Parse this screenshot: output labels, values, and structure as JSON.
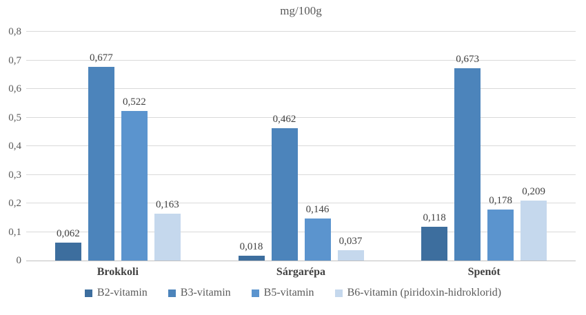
{
  "chart_data": {
    "type": "bar",
    "title": "mg/100g",
    "xlabel": "",
    "ylabel": "",
    "categories": [
      "Brokkoli",
      "Sárgarépa",
      "Spenót"
    ],
    "series": [
      {
        "name": "B2-vitamin",
        "color": "#3d6e9e",
        "values": [
          0.062,
          0.018,
          0.118
        ],
        "value_labels": [
          "0,062",
          "0,018",
          "0,118"
        ]
      },
      {
        "name": "B3-vitamin",
        "color": "#4c84bb",
        "values": [
          0.677,
          0.462,
          0.673
        ],
        "value_labels": [
          "0,677",
          "0,462",
          "0,673"
        ]
      },
      {
        "name": "B5-vitamin",
        "color": "#5b94ce",
        "values": [
          0.522,
          0.146,
          0.178
        ],
        "value_labels": [
          "0,522",
          "0,146",
          "0,178"
        ]
      },
      {
        "name": "B6-vitamin (piridoxin-hidroklorid)",
        "color": "#c5d8ed",
        "values": [
          0.163,
          0.037,
          0.209
        ],
        "value_labels": [
          "0,163",
          "0,037",
          "0,209"
        ]
      }
    ],
    "y_axis": {
      "min": 0,
      "max": 0.8,
      "step": 0.1,
      "tick_labels": [
        "0",
        "0,1",
        "0,2",
        "0,3",
        "0,4",
        "0,5",
        "0,6",
        "0,7",
        "0,8"
      ]
    },
    "grid": true,
    "legend_position": "bottom",
    "decimal_separator": ",",
    "colors": {
      "gridline": "#d9d9d9",
      "axis_line": "#bfbfbf",
      "tick_text": "#595959",
      "value_text": "#404040",
      "category_text": "#404040",
      "legend_text": "#595959",
      "background": "#ffffff"
    }
  }
}
